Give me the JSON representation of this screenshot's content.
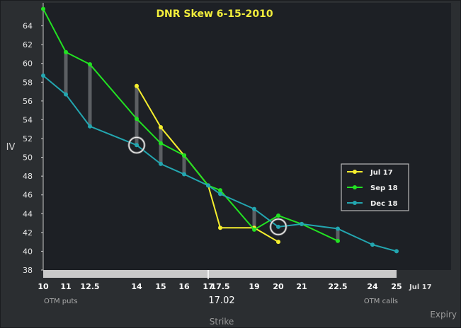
{
  "page": {
    "background": "#2b2e31",
    "plot_background": "#1d2025"
  },
  "chart_data": {
    "type": "line",
    "title": "DNR Skew 6-15-2010",
    "title_color": "#f2ee3c",
    "ylabel": "IV",
    "xlabel": "Strike",
    "ylim": [
      38,
      66
    ],
    "y_ticks": [
      38,
      40,
      42,
      44,
      46,
      48,
      50,
      52,
      54,
      56,
      58,
      60,
      62,
      64
    ],
    "x_ticks": [
      "10",
      "11",
      "12.5",
      "14",
      "15",
      "16",
      "17",
      "17.5",
      "19",
      "20",
      "21",
      "22.5",
      "24",
      "25"
    ],
    "x_extra_tick": "Jul 17",
    "spot_label": "17.02",
    "otm_puts_label": "OTM puts",
    "otm_calls_label": "OTM calls",
    "expiry_label": "Expiry",
    "legend_position": "right-middle",
    "series": [
      {
        "name": "Jul 17",
        "color": "#f5ee2e",
        "points": [
          [
            14,
            57.6
          ],
          [
            15,
            53.2
          ],
          [
            16,
            50.2
          ],
          [
            17,
            47.0
          ],
          [
            17.5,
            42.5
          ],
          [
            19,
            42.5
          ],
          [
            20,
            41.0
          ]
        ]
      },
      {
        "name": "Sep 18",
        "color": "#22e222",
        "points": [
          [
            10,
            65.8
          ],
          [
            11,
            61.2
          ],
          [
            12.5,
            59.9
          ],
          [
            14,
            54.1
          ],
          [
            15,
            51.5
          ],
          [
            16,
            50.2
          ],
          [
            17,
            47.0
          ],
          [
            17.5,
            46.5
          ],
          [
            19,
            42.3
          ],
          [
            20,
            43.8
          ],
          [
            21,
            42.9
          ],
          [
            22.5,
            41.1
          ]
        ]
      },
      {
        "name": "Dec 18",
        "color": "#23a6b0",
        "points": [
          [
            10,
            58.7
          ],
          [
            11,
            56.7
          ],
          [
            12.5,
            53.3
          ],
          [
            14,
            51.3
          ],
          [
            15,
            49.3
          ],
          [
            16,
            48.2
          ],
          [
            17,
            47.0
          ],
          [
            17.5,
            46.1
          ],
          [
            19,
            44.5
          ],
          [
            20,
            42.6
          ],
          [
            21,
            42.9
          ],
          [
            22.5,
            42.4
          ],
          [
            24,
            40.7
          ],
          [
            25,
            40.0
          ]
        ]
      }
    ],
    "spread_bars": [
      {
        "strike": 11,
        "low": 56.7,
        "high": 61.2
      },
      {
        "strike": 12.5,
        "low": 53.3,
        "high": 59.9
      },
      {
        "strike": 14,
        "low": 51.3,
        "high": 57.6
      },
      {
        "strike": 15,
        "low": 49.3,
        "high": 53.2
      },
      {
        "strike": 16,
        "low": 48.2,
        "high": 50.2
      },
      {
        "strike": 19,
        "low": 42.3,
        "high": 44.5
      },
      {
        "strike": 22.5,
        "low": 41.1,
        "high": 42.4
      }
    ],
    "highlights": [
      {
        "strike": 14,
        "iv": 51.3
      },
      {
        "strike": 20,
        "iv": 42.6
      }
    ]
  }
}
